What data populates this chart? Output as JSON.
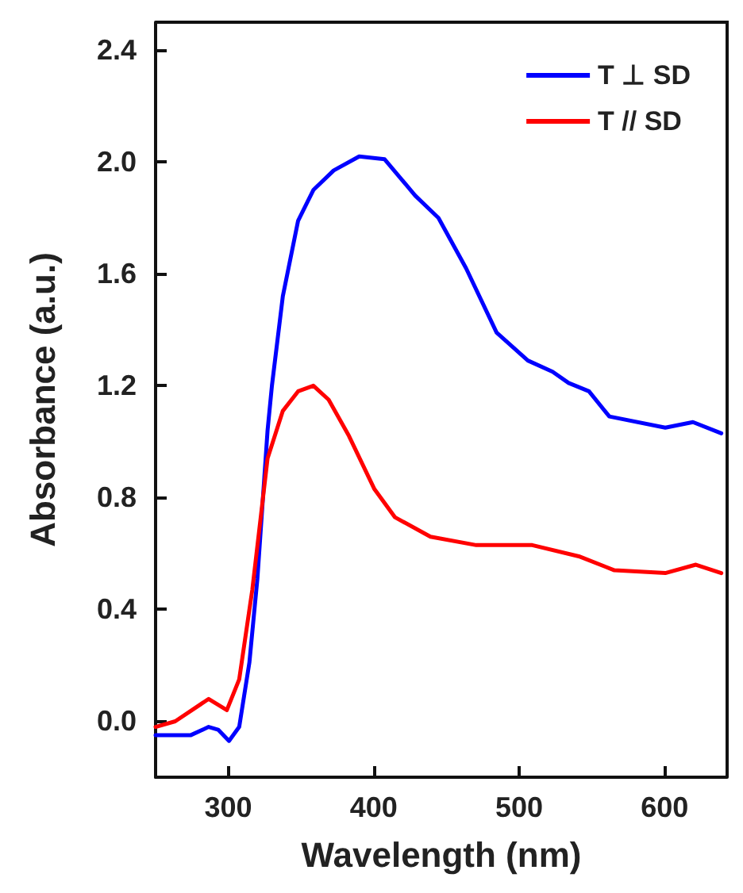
{
  "chart_data": {
    "type": "line",
    "xlabel": "Wavelength (nm)",
    "ylabel": "Absorbance (a.u.)",
    "xlim": [
      250,
      643
    ],
    "xticks": [
      300,
      400,
      500,
      600
    ],
    "ylim": [
      -0.2,
      2.5
    ],
    "yticks": [
      {
        "value": 0,
        "label": "0.0"
      },
      0.4,
      0.8,
      1.2,
      1.6,
      {
        "value": 2,
        "label": "2.0"
      },
      2.4
    ],
    "grid": false,
    "legend": "top right",
    "marker": "none",
    "line_style": "solid",
    "series": [
      {
        "name": "T ⊥ SD",
        "color": "#0000ff",
        "x": [
          250,
          274,
          286.5,
          293,
          300.5,
          307.5,
          314.5,
          320,
          327,
          330,
          337.5,
          348,
          358.5,
          372.5,
          390,
          407.5,
          428.5,
          444.5,
          463.5,
          484.5,
          506,
          523,
          534,
          548,
          562,
          600.5,
          619.5,
          639
        ],
        "values": [
          -0.05,
          -0.05,
          -0.02,
          -0.03,
          -0.07,
          -0.02,
          0.21,
          0.51,
          1.04,
          1.2,
          1.52,
          1.79,
          1.9,
          1.97,
          2.02,
          2.01,
          1.88,
          1.8,
          1.62,
          1.39,
          1.29,
          1.25,
          1.21,
          1.18,
          1.09,
          1.05,
          1.07,
          1.03
        ]
      },
      {
        "name": "T // SD",
        "color": "#ff0000",
        "x": [
          250,
          263.5,
          286.5,
          299,
          307.5,
          316.5,
          327,
          337.5,
          348,
          358.5,
          369,
          383,
          400.5,
          414.5,
          439,
          470.5,
          509,
          541,
          565.5,
          600.5,
          621.5,
          639
        ],
        "values": [
          -0.02,
          0.0,
          0.08,
          0.04,
          0.15,
          0.47,
          0.94,
          1.11,
          1.18,
          1.2,
          1.15,
          1.02,
          0.83,
          0.73,
          0.66,
          0.63,
          0.63,
          0.59,
          0.54,
          0.53,
          0.56,
          0.53
        ]
      }
    ]
  }
}
